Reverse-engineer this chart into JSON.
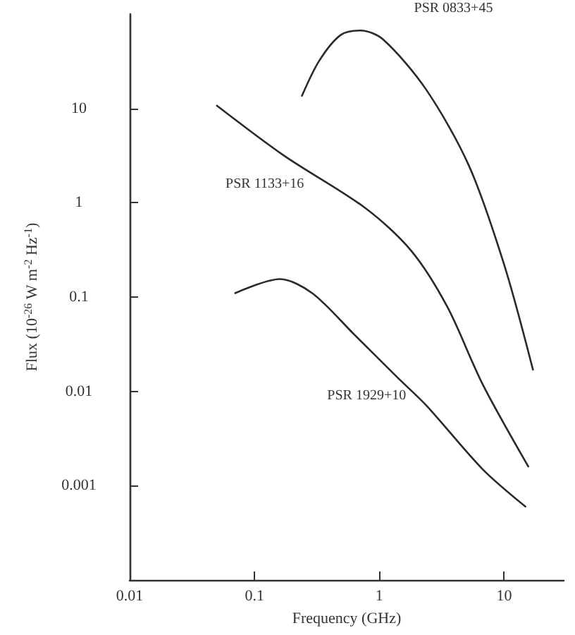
{
  "chart_data": {
    "type": "line",
    "xlabel": "Frequency (GHz)",
    "ylabel": "Flux (10$^{-26}$ W m$^{-2}$ Hz$^{-1}$)",
    "log": "xy",
    "grid": false,
    "legend": false,
    "marker": "none",
    "line_style": "solid",
    "xlim": [
      0.01,
      30
    ],
    "xticks": [
      0.01,
      0.1,
      1,
      10
    ],
    "ylim": [
      0.0001,
      100
    ],
    "yticks": [
      0.001,
      0.01,
      0.1,
      1,
      10
    ],
    "series": [
      {
        "name": "PSR 0833+45",
        "color": "#2a2a2a",
        "x": [
          0.24,
          0.33,
          0.49,
          0.71,
          1.07,
          2.36,
          5.2,
          10,
          17
        ],
        "values": [
          13.6,
          32,
          60,
          67,
          54,
          16,
          2.5,
          0.22,
          0.017
        ]
      },
      {
        "name": "PSR 1133+16",
        "color": "#2a2a2a",
        "x": [
          0.05,
          0.17,
          0.78,
          1.8,
          3.5,
          6.7,
          15.6
        ],
        "values": [
          10.7,
          3.2,
          0.87,
          0.31,
          0.079,
          0.012,
          0.0016
        ]
      },
      {
        "name": "PSR 1929+10",
        "color": "#2a2a2a",
        "x": [
          0.07,
          0.16,
          0.29,
          0.63,
          1.4,
          2.4,
          6.7,
          14.8
        ],
        "values": [
          0.11,
          0.155,
          0.11,
          0.04,
          0.014,
          0.007,
          0.0015,
          0.0006
        ]
      }
    ]
  }
}
